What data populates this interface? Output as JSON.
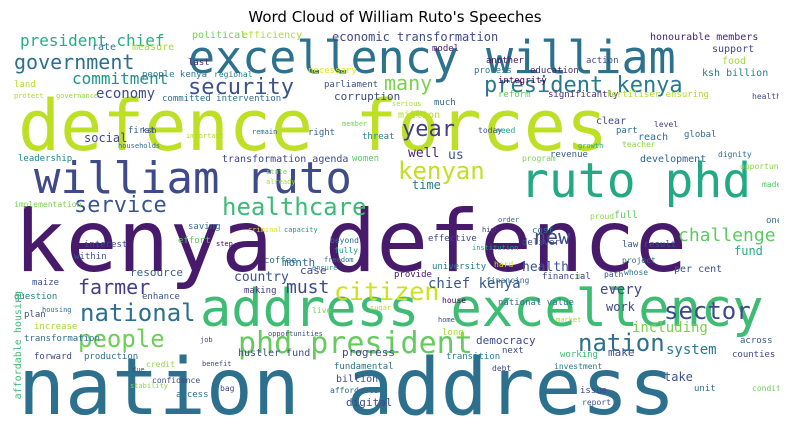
{
  "title": "Word Cloud of William Ruto's Speeches",
  "words": [
    {
      "text": "kenya defence",
      "color": "#481a6c"
    },
    {
      "text": "nation address",
      "color": "#2d708e"
    },
    {
      "text": "defence forces",
      "color": "#bddf26"
    },
    {
      "text": "address excellency",
      "color": "#3fbc73"
    },
    {
      "text": "excellency william",
      "color": "#2c728e"
    },
    {
      "text": "william ruto",
      "color": "#3e4a89"
    },
    {
      "text": "ruto phd",
      "color": "#23a983"
    },
    {
      "text": "phd president",
      "color": "#65cb5e"
    },
    {
      "text": "president kenya",
      "color": "#2a788e"
    },
    {
      "text": "security",
      "color": "#3b528b"
    },
    {
      "text": "government",
      "color": "#2d708e"
    },
    {
      "text": "president chief",
      "color": "#27ad81"
    },
    {
      "text": "healthcare",
      "color": "#3bbb75"
    },
    {
      "text": "kenyan",
      "color": "#c2df23"
    },
    {
      "text": "service",
      "color": "#39558c"
    },
    {
      "text": "citizen",
      "color": "#cde11d"
    },
    {
      "text": "national",
      "color": "#2d708e"
    },
    {
      "text": "farmer",
      "color": "#433e85"
    },
    {
      "text": "people",
      "color": "#6ece58"
    },
    {
      "text": "nation",
      "color": "#2d708e"
    },
    {
      "text": "sector",
      "color": "#3e4a89"
    },
    {
      "text": "many",
      "color": "#7ad151"
    },
    {
      "text": "year",
      "color": "#433e85"
    },
    {
      "text": "commitment",
      "color": "#21918c"
    },
    {
      "text": "economy",
      "color": "#3e4a89"
    },
    {
      "text": "economic transformation",
      "color": "#3e4a89"
    },
    {
      "text": "efficiency",
      "color": "#addc30"
    },
    {
      "text": "political",
      "color": "#75d054"
    },
    {
      "text": "honourable members",
      "color": "#482374"
    },
    {
      "text": "support",
      "color": "#3f4788"
    },
    {
      "text": "food",
      "color": "#a0da39"
    },
    {
      "text": "ksh billion",
      "color": "#287c8e"
    },
    {
      "text": "rate",
      "color": "#2d708e"
    },
    {
      "text": "measure",
      "color": "#a5db36"
    },
    {
      "text": "last",
      "color": "#482878"
    },
    {
      "text": "people kenya",
      "color": "#2a788e"
    },
    {
      "text": "regional",
      "color": "#287d8e"
    },
    {
      "text": "model",
      "color": "#481b6d"
    },
    {
      "text": "another",
      "color": "#471063"
    },
    {
      "text": "process",
      "color": "#287d8e"
    },
    {
      "text": "education",
      "color": "#482677"
    },
    {
      "text": "action",
      "color": "#3e4989"
    },
    {
      "text": "integrity",
      "color": "#440154"
    },
    {
      "text": "land",
      "color": "#b5de2b"
    },
    {
      "text": "protect",
      "color": "#a2da37"
    },
    {
      "text": "governance",
      "color": "#95d840"
    },
    {
      "text": "committed intervention",
      "color": "#2d708e"
    },
    {
      "text": "necessary",
      "color": "#e5e419"
    },
    {
      "text": "parliament",
      "color": "#3b528b"
    },
    {
      "text": "reform",
      "color": "#5ec962"
    },
    {
      "text": "significantly",
      "color": "#472d7b"
    },
    {
      "text": "fertiliser ensuring",
      "color": "#addc30"
    },
    {
      "text": "corruption",
      "color": "#3e4a89"
    },
    {
      "text": "serious",
      "color": "#a8db34"
    },
    {
      "text": "much",
      "color": "#31688e"
    },
    {
      "text": "million",
      "color": "#b5de2b"
    },
    {
      "text": "social",
      "color": "#404588"
    },
    {
      "text": "first",
      "color": "#31688e"
    },
    {
      "text": "ksh",
      "color": "#3f4889"
    },
    {
      "text": "important",
      "color": "#b5de2b"
    },
    {
      "text": "remain",
      "color": "#31688e"
    },
    {
      "text": "right",
      "color": "#31688e"
    },
    {
      "text": "member",
      "color": "#7fd34e"
    },
    {
      "text": "threat",
      "color": "#26828e"
    },
    {
      "text": "well",
      "color": "#482878"
    },
    {
      "text": "us",
      "color": "#38588c"
    },
    {
      "text": "today",
      "color": "#3b528b"
    },
    {
      "text": "need",
      "color": "#1f9e89"
    },
    {
      "text": "clear",
      "color": "#3f4788"
    },
    {
      "text": "part",
      "color": "#2d708e"
    },
    {
      "text": "level",
      "color": "#433e85"
    },
    {
      "text": "global",
      "color": "#2d708e"
    },
    {
      "text": "reach",
      "color": "#2e6f8e"
    },
    {
      "text": "leadership",
      "color": "#24868e"
    },
    {
      "text": "households",
      "color": "#2c738e"
    },
    {
      "text": "transformation agenda",
      "color": "#3e4989"
    },
    {
      "text": "women",
      "color": "#5ec962"
    },
    {
      "text": "time",
      "color": "#2a788e"
    },
    {
      "text": "teacher",
      "color": "#8bd646"
    },
    {
      "text": "revenue",
      "color": "#37598c"
    },
    {
      "text": "growth",
      "color": "#26ad81"
    },
    {
      "text": "program",
      "color": "#7ad151"
    },
    {
      "text": "development",
      "color": "#32648e"
    },
    {
      "text": "dignity",
      "color": "#2e6e8e"
    },
    {
      "text": "healthcare service",
      "color": "#3e4c8a"
    },
    {
      "text": "opportunities",
      "color": "#8bd646"
    },
    {
      "text": "state",
      "color": "#73d056"
    },
    {
      "text": "already",
      "color": "#a0da39"
    },
    {
      "text": "saving",
      "color": "#2e6e8e"
    },
    {
      "text": "effort",
      "color": "#5ec962"
    },
    {
      "text": "step",
      "color": "#450559"
    },
    {
      "text": "criminal",
      "color": "#d8e219"
    },
    {
      "text": "capacity",
      "color": "#1f978b"
    },
    {
      "text": "beyond",
      "color": "#31688e"
    },
    {
      "text": "fully",
      "color": "#1f988b"
    },
    {
      "text": "effective",
      "color": "#3e4a89"
    },
    {
      "text": "high",
      "color": "#443a83"
    },
    {
      "text": "order",
      "color": "#2e6f8e"
    },
    {
      "text": "cost",
      "color": "#2a788e"
    },
    {
      "text": "deliver",
      "color": "#3e4c8a"
    },
    {
      "text": "institution",
      "color": "#1fa088"
    },
    {
      "text": "proud",
      "color": "#8bd646"
    },
    {
      "text": "full",
      "color": "#5ec962"
    },
    {
      "text": "law result",
      "color": "#38588c"
    },
    {
      "text": "one",
      "color": "#2d708e"
    },
    {
      "text": "made",
      "color": "#56c667"
    },
    {
      "text": "challenge",
      "color": "#5ec962"
    },
    {
      "text": "new",
      "color": "#3e4a89"
    },
    {
      "text": "case",
      "color": "#3e4a89"
    },
    {
      "text": "month",
      "color": "#31688e"
    },
    {
      "text": "ensure",
      "color": "#21918c"
    },
    {
      "text": "fund",
      "color": "#27ad81"
    },
    {
      "text": "implementation",
      "color": "#7fd34e"
    },
    {
      "text": "within",
      "color": "#38588c"
    },
    {
      "text": "must",
      "color": "#3e4a89"
    },
    {
      "text": "chief kenya",
      "color": "#38598c"
    },
    {
      "text": "every",
      "color": "#3e4a89"
    },
    {
      "text": "hard",
      "color": "#d8e219"
    },
    {
      "text": "health",
      "color": "#3b528b"
    },
    {
      "text": "financing",
      "color": "#2e6f8e"
    },
    {
      "text": "university",
      "color": "#2a788e"
    },
    {
      "text": "mr",
      "color": "#95d840"
    },
    {
      "text": "project",
      "color": "#31688e"
    },
    {
      "text": "whose",
      "color": "#2c738e"
    },
    {
      "text": "per cent",
      "color": "#3b528b"
    },
    {
      "text": "interest",
      "color": "#3e4a89"
    },
    {
      "text": "maize",
      "color": "#3b528b"
    },
    {
      "text": "resource",
      "color": "#35608d"
    },
    {
      "text": "country",
      "color": "#3b528b"
    },
    {
      "text": "coffee",
      "color": "#2e6e8e"
    },
    {
      "text": "freedom",
      "color": "#2d708e"
    },
    {
      "text": "provide",
      "color": "#481668"
    },
    {
      "text": "financial",
      "color": "#3e4c8a"
    },
    {
      "text": "path",
      "color": "#3b528b"
    },
    {
      "text": "question",
      "color": "#26828e"
    },
    {
      "text": "housing",
      "color": "#2e6e8e"
    },
    {
      "text": "affordable housing",
      "color": "#3fbc73"
    },
    {
      "text": "plan",
      "color": "#3e4a89"
    },
    {
      "text": "increase",
      "color": "#a0da39"
    },
    {
      "text": "enhance",
      "color": "#39558c"
    },
    {
      "text": "making",
      "color": "#46337e"
    },
    {
      "text": "live",
      "color": "#7ad151"
    },
    {
      "text": "sugar",
      "color": "#b5de2b"
    },
    {
      "text": "house",
      "color": "#440154"
    },
    {
      "text": "national value",
      "color": "#2c738e"
    },
    {
      "text": "work",
      "color": "#3e4a89"
    },
    {
      "text": "market",
      "color": "#a8db34"
    },
    {
      "text": "including",
      "color": "#7ad151"
    },
    {
      "text": "transformation",
      "color": "#2d708e"
    },
    {
      "text": "home",
      "color": "#3b528b"
    },
    {
      "text": "long",
      "color": "#a0da39"
    },
    {
      "text": "democracy",
      "color": "#3e4a89"
    },
    {
      "text": "system",
      "color": "#2a788e"
    },
    {
      "text": "forward",
      "color": "#3e4a89"
    },
    {
      "text": "production",
      "color": "#2e6f8e"
    },
    {
      "text": "credit",
      "color": "#8bd646"
    },
    {
      "text": "job",
      "color": "#3e4a89"
    },
    {
      "text": "hustler fund",
      "color": "#3e4a89"
    },
    {
      "text": "progress",
      "color": "#3e4a89"
    },
    {
      "text": "fundamental",
      "color": "#2d708e"
    },
    {
      "text": "transition",
      "color": "#2a788e"
    },
    {
      "text": "next",
      "color": "#3e4a89"
    },
    {
      "text": "working",
      "color": "#3bbb75"
    },
    {
      "text": "make",
      "color": "#3e4a89"
    },
    {
      "text": "across",
      "color": "#38588c"
    },
    {
      "text": "counties",
      "color": "#3e4989"
    },
    {
      "text": "billion",
      "color": "#3e4a89"
    },
    {
      "text": "affordable",
      "color": "#31688e"
    },
    {
      "text": "debt",
      "color": "#3e4a89"
    },
    {
      "text": "investment",
      "color": "#2a788e"
    },
    {
      "text": "take",
      "color": "#3b528b"
    },
    {
      "text": "unit",
      "color": "#2e6f8e"
    },
    {
      "text": "condition",
      "color": "#6ece58"
    },
    {
      "text": "access",
      "color": "#2a788e"
    },
    {
      "text": "bag",
      "color": "#3e4a89"
    },
    {
      "text": "digital",
      "color": "#3e4a89"
    },
    {
      "text": "confidence",
      "color": "#3e4a89"
    },
    {
      "text": "issue",
      "color": "#3e4a89"
    },
    {
      "text": "report",
      "color": "#3b528b"
    },
    {
      "text": "benefit",
      "color": "#3e4a89"
    },
    {
      "text": "stability",
      "color": "#8bd646"
    },
    {
      "text": "due",
      "color": "#3e4a89"
    },
    {
      "text": "opportunities",
      "color": "#3e4a89"
    }
  ]
}
